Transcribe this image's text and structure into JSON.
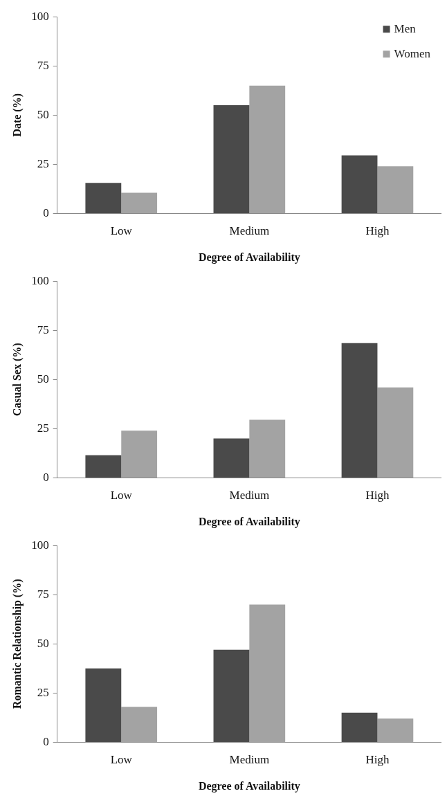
{
  "chart_data": [
    {
      "type": "bar",
      "categories": [
        "Low",
        "Medium",
        "High"
      ],
      "xlabel": "Degree of Availability",
      "ylabel": "Date (%)",
      "ylim": [
        0,
        100
      ],
      "yticks": [
        0,
        25,
        50,
        75,
        100
      ],
      "grid": false,
      "legend": "top right",
      "series": [
        {
          "name": "Men",
          "color": "#4a4a4a",
          "values": [
            15.5,
            55,
            29.5
          ]
        },
        {
          "name": "Women",
          "color": "#a3a3a3",
          "values": [
            10.5,
            65,
            24
          ]
        }
      ]
    },
    {
      "type": "bar",
      "categories": [
        "Low",
        "Medium",
        "High"
      ],
      "xlabel": "Degree of Availability",
      "ylabel": "Casual Sex (%)",
      "ylim": [
        0,
        100
      ],
      "yticks": [
        0,
        25,
        50,
        75,
        100
      ],
      "grid": false,
      "series": [
        {
          "color": "#4a4a4a",
          "values": [
            11.5,
            20,
            68.5
          ]
        },
        {
          "color": "#a3a3a3",
          "values": [
            24,
            29.5,
            46
          ]
        }
      ]
    },
    {
      "type": "bar",
      "categories": [
        "Low",
        "Medium",
        "High"
      ],
      "xlabel": "Degree of Availability",
      "ylabel": "Romantic Relationship (%)",
      "ylim": [
        0,
        100
      ],
      "yticks": [
        0,
        25,
        50,
        75,
        100
      ],
      "grid": false,
      "series": [
        {
          "color": "#4a4a4a",
          "values": [
            37.5,
            47,
            15
          ]
        },
        {
          "color": "#a3a3a3",
          "values": [
            18,
            70,
            12
          ]
        }
      ]
    }
  ]
}
